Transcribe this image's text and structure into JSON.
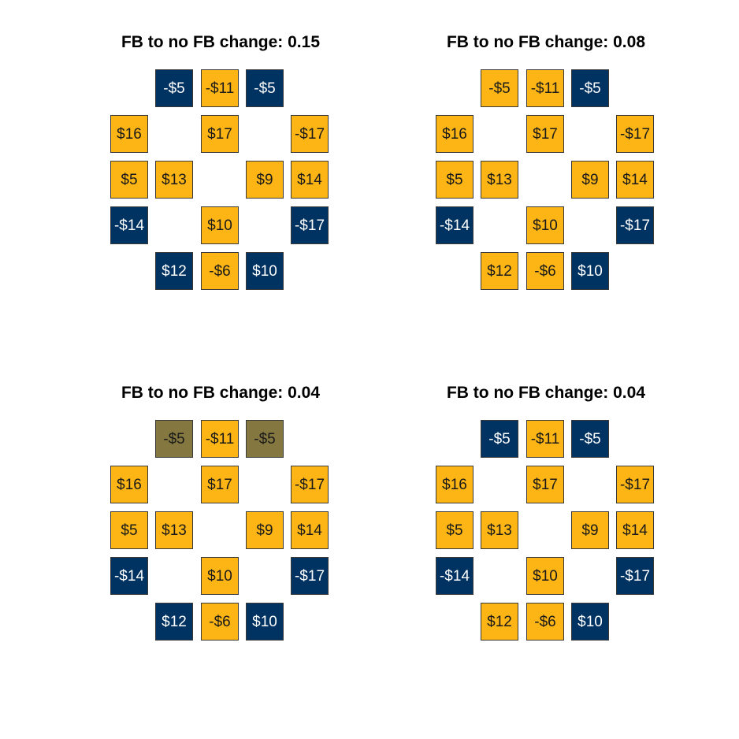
{
  "colors": {
    "gold": "#FDB515",
    "navy": "#003262",
    "olive": "#847740",
    "text_dark": "#1a1a1a",
    "text_light": "#ffffff"
  },
  "panels": [
    {
      "title": "FB to no FB change: 0.15",
      "tiles": [
        {
          "label": "-$5",
          "color": "navy"
        },
        {
          "label": "-$11",
          "color": "gold"
        },
        {
          "label": "-$5",
          "color": "navy"
        },
        {
          "label": "$16",
          "color": "gold"
        },
        {
          "label": "$17",
          "color": "gold"
        },
        {
          "label": "-$17",
          "color": "gold"
        },
        {
          "label": "$5",
          "color": "gold"
        },
        {
          "label": "$13",
          "color": "gold"
        },
        {
          "label": "$9",
          "color": "gold"
        },
        {
          "label": "$14",
          "color": "gold"
        },
        {
          "label": "-$14",
          "color": "navy"
        },
        {
          "label": "$10",
          "color": "gold"
        },
        {
          "label": "-$17",
          "color": "navy"
        },
        {
          "label": "$12",
          "color": "navy"
        },
        {
          "label": "-$6",
          "color": "gold"
        },
        {
          "label": "$10",
          "color": "navy"
        }
      ]
    },
    {
      "title": "FB to no FB change: 0.08",
      "tiles": [
        {
          "label": "-$5",
          "color": "gold"
        },
        {
          "label": "-$11",
          "color": "gold"
        },
        {
          "label": "-$5",
          "color": "navy"
        },
        {
          "label": "$16",
          "color": "gold"
        },
        {
          "label": "$17",
          "color": "gold"
        },
        {
          "label": "-$17",
          "color": "gold"
        },
        {
          "label": "$5",
          "color": "gold"
        },
        {
          "label": "$13",
          "color": "gold"
        },
        {
          "label": "$9",
          "color": "gold"
        },
        {
          "label": "$14",
          "color": "gold"
        },
        {
          "label": "-$14",
          "color": "navy"
        },
        {
          "label": "$10",
          "color": "gold"
        },
        {
          "label": "-$17",
          "color": "navy"
        },
        {
          "label": "$12",
          "color": "gold"
        },
        {
          "label": "-$6",
          "color": "gold"
        },
        {
          "label": "$10",
          "color": "navy"
        }
      ]
    },
    {
      "title": "FB to no FB change: 0.04",
      "tiles": [
        {
          "label": "-$5",
          "color": "olive"
        },
        {
          "label": "-$11",
          "color": "gold"
        },
        {
          "label": "-$5",
          "color": "olive"
        },
        {
          "label": "$16",
          "color": "gold"
        },
        {
          "label": "$17",
          "color": "gold"
        },
        {
          "label": "-$17",
          "color": "gold"
        },
        {
          "label": "$5",
          "color": "gold"
        },
        {
          "label": "$13",
          "color": "gold"
        },
        {
          "label": "$9",
          "color": "gold"
        },
        {
          "label": "$14",
          "color": "gold"
        },
        {
          "label": "-$14",
          "color": "navy"
        },
        {
          "label": "$10",
          "color": "gold"
        },
        {
          "label": "-$17",
          "color": "navy"
        },
        {
          "label": "$12",
          "color": "navy"
        },
        {
          "label": "-$6",
          "color": "gold"
        },
        {
          "label": "$10",
          "color": "navy"
        }
      ]
    },
    {
      "title": "FB to no FB change: 0.04",
      "tiles": [
        {
          "label": "-$5",
          "color": "navy"
        },
        {
          "label": "-$11",
          "color": "gold"
        },
        {
          "label": "-$5",
          "color": "navy"
        },
        {
          "label": "$16",
          "color": "gold"
        },
        {
          "label": "$17",
          "color": "gold"
        },
        {
          "label": "-$17",
          "color": "gold"
        },
        {
          "label": "$5",
          "color": "gold"
        },
        {
          "label": "$13",
          "color": "gold"
        },
        {
          "label": "$9",
          "color": "gold"
        },
        {
          "label": "$14",
          "color": "gold"
        },
        {
          "label": "-$14",
          "color": "navy"
        },
        {
          "label": "$10",
          "color": "gold"
        },
        {
          "label": "-$17",
          "color": "navy"
        },
        {
          "label": "$12",
          "color": "gold"
        },
        {
          "label": "-$6",
          "color": "gold"
        },
        {
          "label": "$10",
          "color": "navy"
        }
      ]
    }
  ]
}
